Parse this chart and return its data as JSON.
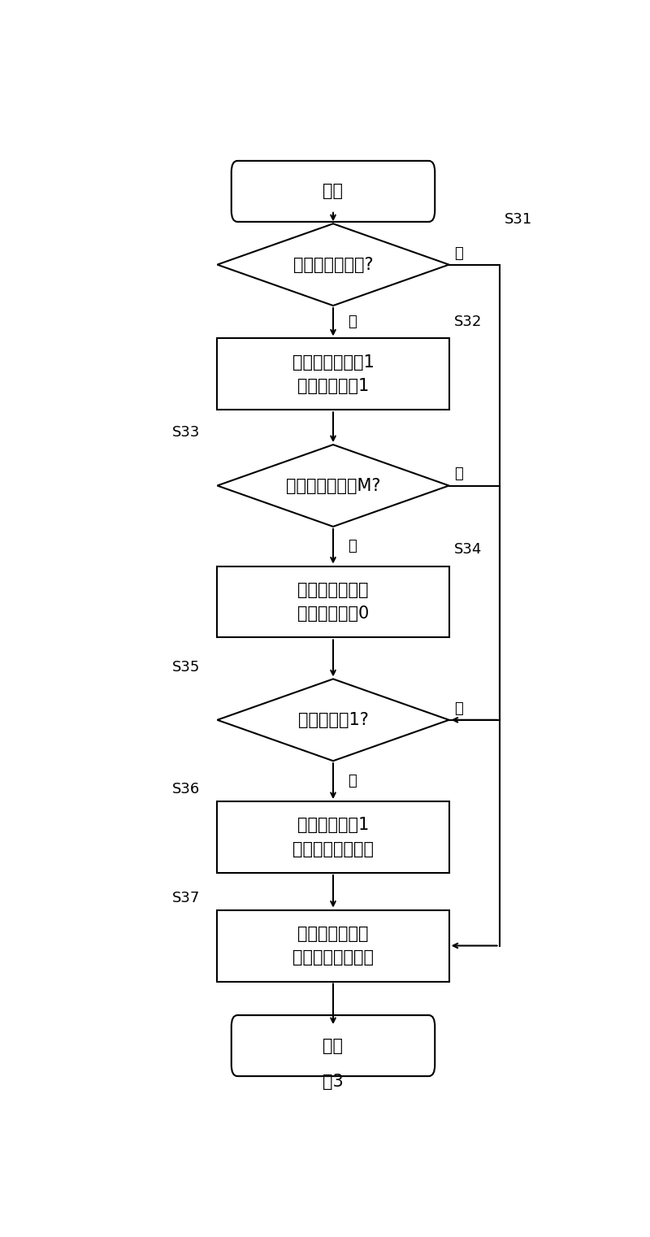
{
  "title": "图3",
  "bg_color": "#ffffff",
  "font_size_main": 15,
  "font_size_label": 13,
  "font_size_title": 15,
  "line_color": "#000000",
  "text_color": "#000000",
  "box_color": "#ffffff",
  "box_edge": "#000000",
  "start_text": "开始",
  "end_text": "结束",
  "s31_text": "输入信号上升沿?",
  "s32_text": "宽度计数器置为1\n输出信号置为1",
  "s33_text": "宽度计数器等于M?",
  "s34_text": "宽度计数器不变\n输出信号置为0",
  "s35_text": "输入信号为1?",
  "s36_text": "宽度计数器加1\n输出信号保持不变",
  "s37_text": "宽度计数器不变\n输出信号保持不变",
  "yes": "是",
  "no": "否",
  "lbl31": "S31",
  "lbl32": "S32",
  "lbl33": "S33",
  "lbl34": "S34",
  "lbl35": "S35",
  "lbl36": "S36",
  "lbl37": "S37"
}
